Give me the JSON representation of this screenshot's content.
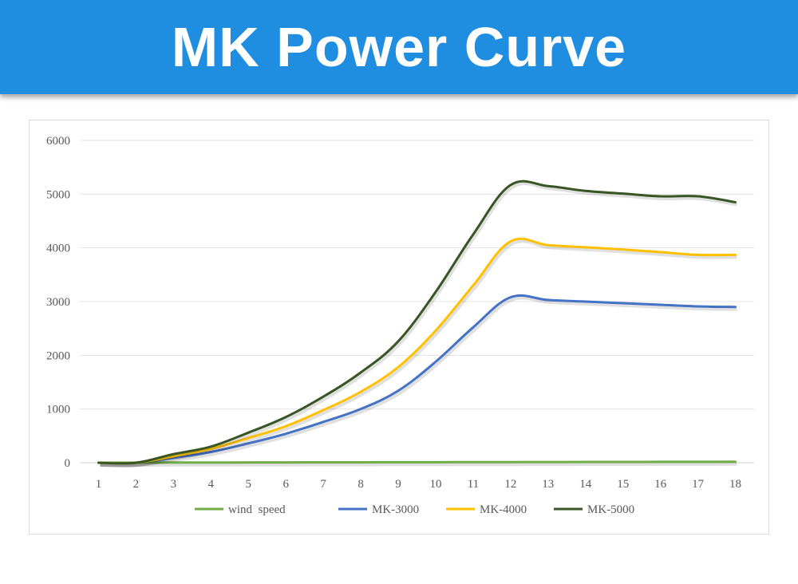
{
  "header": {
    "title": "MK Power Curve"
  },
  "chart_data": {
    "type": "line",
    "title": "",
    "xlabel": "",
    "ylabel": "",
    "ylim": [
      0,
      6000
    ],
    "y_ticks": [
      0,
      1000,
      2000,
      3000,
      4000,
      5000,
      6000
    ],
    "grid": true,
    "legend_position": "bottom",
    "x": [
      1,
      2,
      3,
      4,
      5,
      6,
      7,
      8,
      9,
      10,
      11,
      12,
      13,
      14,
      15,
      16,
      17,
      18
    ],
    "series": [
      {
        "name": "wind  speed",
        "color": "#70ad47",
        "values": [
          1,
          2,
          3,
          4,
          5,
          6,
          7,
          8,
          9,
          10,
          11,
          12,
          13,
          14,
          15,
          16,
          17,
          18
        ]
      },
      {
        "name": "MK-3000",
        "color": "#4472c4",
        "values": [
          0,
          0,
          90,
          200,
          360,
          540,
          760,
          1000,
          1340,
          1880,
          2520,
          3080,
          3030,
          3000,
          2970,
          2940,
          2910,
          2900
        ]
      },
      {
        "name": "MK-4000",
        "color": "#ffc000",
        "values": [
          0,
          0,
          120,
          260,
          460,
          680,
          980,
          1320,
          1780,
          2460,
          3300,
          4120,
          4050,
          4010,
          3970,
          3920,
          3870,
          3870
        ]
      },
      {
        "name": "MK-5000",
        "color": "#375623",
        "values": [
          0,
          0,
          160,
          300,
          560,
          850,
          1230,
          1680,
          2260,
          3180,
          4250,
          5170,
          5150,
          5060,
          5010,
          4960,
          4960,
          4850
        ]
      }
    ]
  }
}
